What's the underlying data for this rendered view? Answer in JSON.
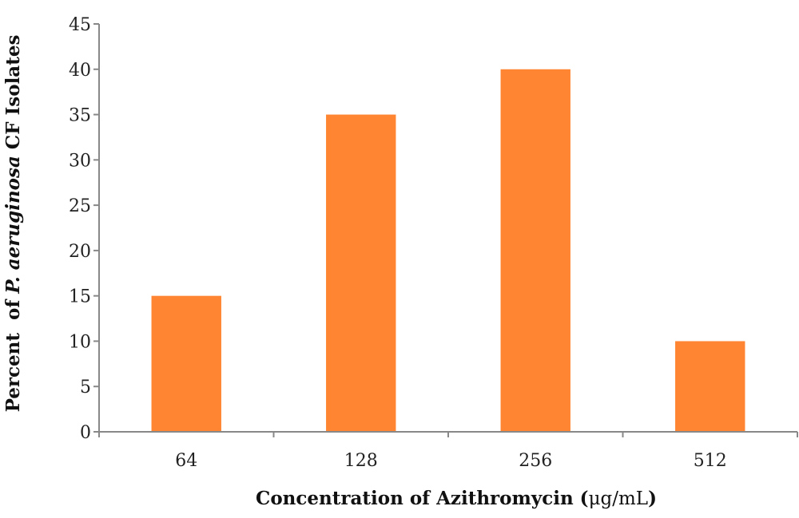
{
  "chart_data": {
    "type": "bar",
    "categories": [
      "64",
      "128",
      "256",
      "512"
    ],
    "values": [
      15,
      35,
      40,
      10
    ],
    "ylim": [
      0,
      45
    ],
    "yticks": [
      0,
      5,
      10,
      15,
      20,
      25,
      30,
      35,
      40,
      45
    ],
    "xlabel": {
      "prefix": "Concentration of Azithromycin (",
      "unit": "μg/mL",
      "suffix": ")"
    },
    "ylabel": {
      "prefix": "Percent  of ",
      "species": "P. aeruginosa",
      "suffix": " CF Isolates"
    },
    "bar_color": "#FF8533",
    "axis_color": "#888888",
    "grid": false,
    "legend": "none"
  }
}
